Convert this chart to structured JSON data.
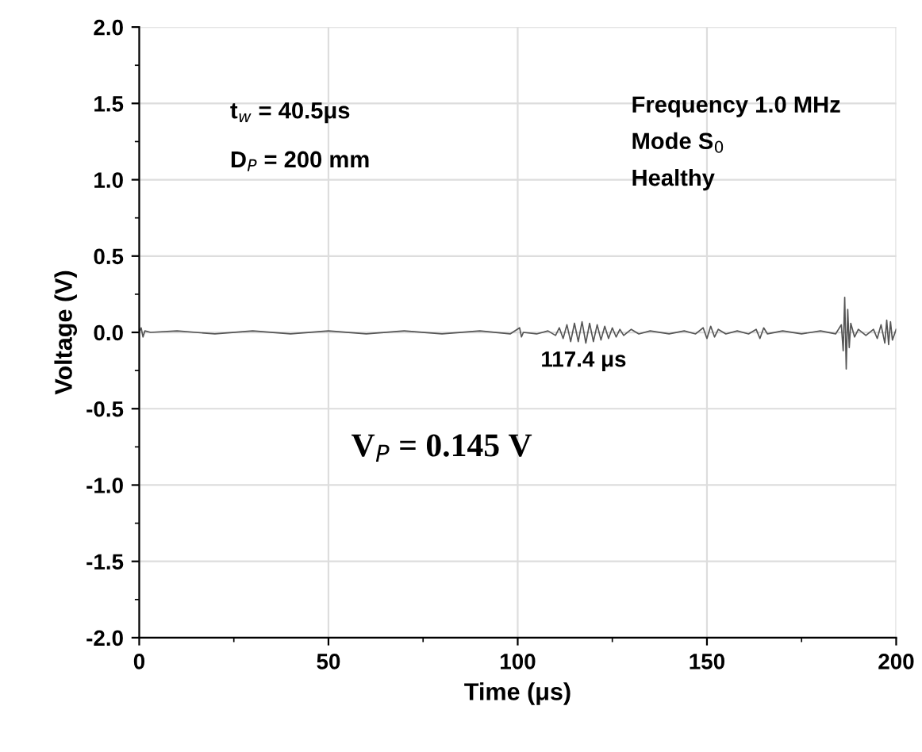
{
  "chart_data": {
    "type": "line",
    "xlabel": "Time (μs)",
    "ylabel": "Voltage (V)",
    "xlim": [
      0,
      200
    ],
    "xticks": [
      0,
      50,
      100,
      150,
      200
    ],
    "ylim": [
      -2.0,
      2.0
    ],
    "yticks": [
      {
        "value": -2.0,
        "label": "-2.0"
      },
      {
        "value": -1.5,
        "label": "-1.5"
      },
      {
        "value": -1.0,
        "label": "-1.0"
      },
      {
        "value": -0.5,
        "label": "-0.5"
      },
      {
        "value": 0.0,
        "label": "0.0"
      },
      {
        "value": 0.5,
        "label": "0.5"
      },
      {
        "value": 1.0,
        "label": "1.0"
      },
      {
        "value": 1.5,
        "label": "1.5"
      },
      {
        "value": 2.0,
        "label": "2.0"
      }
    ],
    "grid": true,
    "marker": "none",
    "line_style": "solid",
    "annotations": [
      "t$_{w}$ = 40.5μs",
      "D$_{P}$ = 200 mm",
      "Frequency 1.0 MHz",
      "Mode S$_{0}$",
      "Healthy",
      {
        "text": "117.4 μs",
        "x": 117.4,
        "y": -0.12
      },
      "V$_{P}$ = 0.145 V"
    ],
    "series": [
      {
        "color": "#555555",
        "x": [
          0,
          0.5,
          1,
          1.5,
          3,
          10,
          20,
          30,
          40,
          50,
          60,
          70,
          80,
          90,
          98,
          100.5,
          101,
          101.5,
          105,
          108,
          110,
          111,
          112,
          113,
          114,
          115,
          116,
          117,
          118,
          119,
          120,
          121,
          122,
          123,
          124,
          125,
          126,
          127,
          128,
          130,
          132,
          135,
          140,
          144,
          147,
          149,
          150,
          151,
          152,
          153,
          155,
          158,
          161,
          163,
          164,
          165,
          166,
          170,
          175,
          180,
          184,
          185.5,
          186,
          186.4,
          186.8,
          187.2,
          187.6,
          188,
          189,
          190,
          192,
          194,
          195,
          196,
          197,
          197.5,
          198,
          198.5,
          199,
          200
        ],
        "values": [
          0,
          0.03,
          -0.03,
          0.01,
          0,
          0.01,
          -0.01,
          0.01,
          -0.01,
          0.01,
          -0.01,
          0.01,
          -0.01,
          0.01,
          -0.01,
          0.03,
          -0.03,
          0,
          -0.01,
          0.01,
          -0.02,
          0.03,
          -0.04,
          0.05,
          -0.06,
          0.06,
          -0.06,
          0.07,
          -0.07,
          0.06,
          -0.06,
          0.05,
          -0.05,
          0.04,
          -0.04,
          0.03,
          -0.03,
          0.02,
          -0.02,
          0.02,
          -0.01,
          0.01,
          -0.01,
          0.01,
          -0.01,
          0.03,
          -0.04,
          0.04,
          -0.03,
          0.02,
          -0.01,
          0.01,
          -0.01,
          0.02,
          -0.04,
          0.03,
          -0.01,
          0.01,
          -0.01,
          0.01,
          -0.01,
          0.05,
          -0.12,
          0.23,
          -0.24,
          0.15,
          -0.1,
          0.06,
          -0.03,
          0.02,
          -0.02,
          0.02,
          -0.04,
          0.05,
          -0.07,
          0.08,
          -0.08,
          0.07,
          -0.05,
          0.02
        ]
      }
    ]
  }
}
